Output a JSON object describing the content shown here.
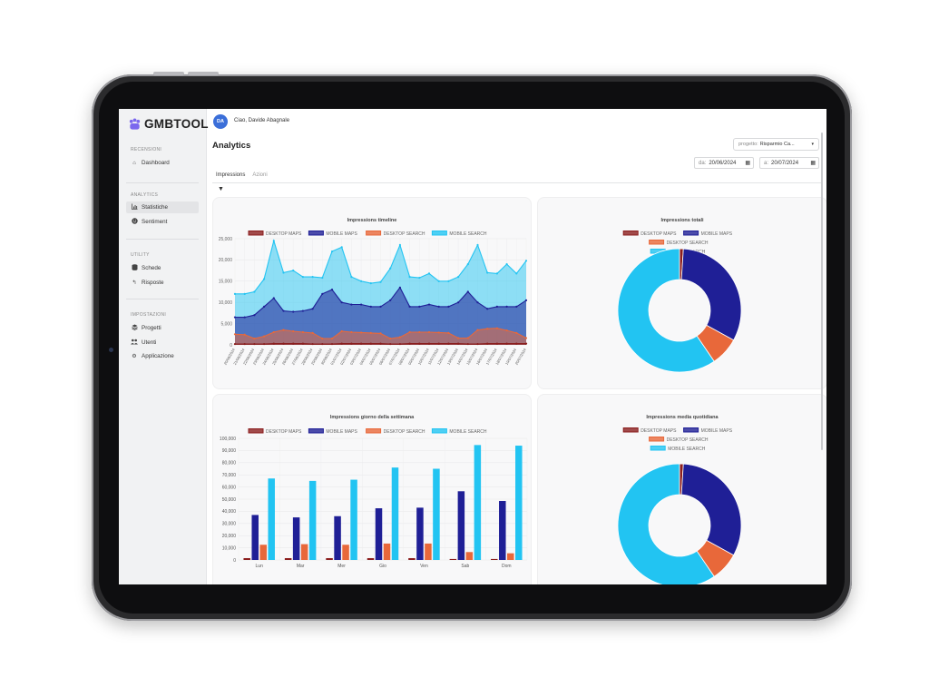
{
  "app": {
    "brand": "GMBTOOL"
  },
  "sidebar": {
    "sections": [
      {
        "title": "RECENSIONI",
        "items": [
          {
            "label": "Dashboard",
            "icon": "home-icon"
          }
        ]
      },
      {
        "title": "ANALYTICS",
        "items": [
          {
            "label": "Statistiche",
            "icon": "chart-icon",
            "active": true
          },
          {
            "label": "Sentiment",
            "icon": "smile-icon"
          }
        ]
      },
      {
        "title": "UTILITY",
        "items": [
          {
            "label": "Schede",
            "icon": "database-icon"
          },
          {
            "label": "Risposte",
            "icon": "reply-icon"
          }
        ]
      },
      {
        "title": "IMPOSTAZIONI",
        "items": [
          {
            "label": "Progetti",
            "icon": "layers-icon"
          },
          {
            "label": "Utenti",
            "icon": "users-icon"
          },
          {
            "label": "Applicazione",
            "icon": "gear-icon"
          }
        ]
      }
    ]
  },
  "header": {
    "avatar_initials": "DA",
    "greeting": "Ciao, Davide Abagnale"
  },
  "page": {
    "title": "Analytics"
  },
  "filters": {
    "project_label": "progetto:",
    "project_value": "Risparmio Ca...",
    "from_label": "da:",
    "from_value": "20/06/2024",
    "to_label": "a:",
    "to_value": "20/07/2024",
    "filter_toggle": "▼"
  },
  "tabs": [
    {
      "label": "Impressions",
      "active": true
    },
    {
      "label": "Azioni",
      "active": false
    }
  ],
  "colors": {
    "desktop_maps": "#8b1e1e",
    "mobile_maps": "#1f1f96",
    "desktop_search": "#e8683a",
    "mobile_search": "#22c4f2"
  },
  "chart_data": [
    {
      "type": "area",
      "title": "Impressions timeline",
      "x": [
        "20/06/2024",
        "21/06/2024",
        "22/06/2024",
        "23/06/2024",
        "24/06/2024",
        "25/06/2024",
        "26/06/2024",
        "27/06/2024",
        "28/06/2024",
        "29/06/2024",
        "30/06/2024",
        "01/07/2024",
        "02/07/2024",
        "03/07/2024",
        "04/07/2024",
        "05/07/2024",
        "06/07/2024",
        "07/07/2024",
        "08/07/2024",
        "09/07/2024",
        "10/07/2024",
        "11/07/2024",
        "12/07/2024",
        "13/07/2024",
        "14/07/2024",
        "15/07/2024",
        "16/07/2024",
        "17/07/2024",
        "18/07/2024",
        "19/07/2024",
        "20/07/2024"
      ],
      "yticks": [
        "0",
        "5,000",
        "10,000",
        "15,000",
        "20,000",
        "25,000"
      ],
      "ylim": [
        0,
        25000
      ],
      "series": [
        {
          "name": "DESKTOP MAPS",
          "values": [
            200,
            200,
            200,
            200,
            300,
            300,
            300,
            300,
            200,
            200,
            200,
            300,
            300,
            300,
            300,
            300,
            200,
            200,
            300,
            300,
            300,
            300,
            300,
            300,
            200,
            200,
            300,
            300,
            300,
            300,
            300
          ]
        },
        {
          "name": "MOBILE MAPS",
          "values": [
            6500,
            6500,
            7000,
            9000,
            11000,
            8000,
            7800,
            8000,
            8500,
            12000,
            13000,
            10000,
            9500,
            9500,
            9000,
            9000,
            10500,
            13500,
            9000,
            9000,
            9500,
            9000,
            9000,
            10000,
            12500,
            10000,
            8500,
            9000,
            9000,
            9000,
            10500
          ]
        },
        {
          "name": "DESKTOP SEARCH",
          "values": [
            2500,
            2400,
            1500,
            2000,
            3000,
            3500,
            3200,
            3000,
            2800,
            1500,
            1500,
            3200,
            3000,
            2900,
            2800,
            2700,
            1500,
            1800,
            3000,
            3000,
            3000,
            2900,
            2800,
            1600,
            1600,
            3500,
            3800,
            3900,
            3400,
            2800,
            1600
          ]
        },
        {
          "name": "MOBILE SEARCH",
          "values": [
            12000,
            12000,
            12500,
            15500,
            24500,
            17000,
            17500,
            16000,
            16000,
            15800,
            22000,
            23000,
            16000,
            15000,
            14500,
            14800,
            18000,
            23500,
            16000,
            15800,
            16800,
            15000,
            15000,
            16000,
            19000,
            23500,
            17000,
            16800,
            19000,
            16800,
            19800
          ]
        }
      ]
    },
    {
      "type": "pie",
      "title": "Impressions totali",
      "donut": true,
      "labels": [
        "DESKTOP MAPS",
        "MOBILE MAPS",
        "DESKTOP SEARCH",
        "MOBILE SEARCH"
      ],
      "values": [
        1.0,
        32.0,
        7.5,
        59.5
      ]
    },
    {
      "type": "bar",
      "title": "Impressions giorno della settimana",
      "categories": [
        "Lun",
        "Mar",
        "Mer",
        "Gio",
        "Ven",
        "Sab",
        "Dom"
      ],
      "yticks": [
        "0",
        "10,000",
        "20,000",
        "30,000",
        "40,000",
        "50,000",
        "60,000",
        "70,000",
        "80,000",
        "90,000",
        "100,000"
      ],
      "ylim": [
        0,
        100000
      ],
      "series": [
        {
          "name": "DESKTOP MAPS",
          "values": [
            1500,
            1500,
            1500,
            1500,
            1500,
            800,
            800
          ]
        },
        {
          "name": "MOBILE MAPS",
          "values": [
            37000,
            35000,
            36000,
            42500,
            43000,
            56500,
            48500
          ]
        },
        {
          "name": "DESKTOP SEARCH",
          "values": [
            12500,
            13000,
            12500,
            13500,
            13500,
            6500,
            5500
          ]
        },
        {
          "name": "MOBILE SEARCH",
          "values": [
            67000,
            65000,
            66000,
            76000,
            75000,
            94500,
            94000
          ]
        }
      ]
    },
    {
      "type": "pie",
      "title": "Impressions media quotidiana",
      "donut": true,
      "labels": [
        "DESKTOP MAPS",
        "MOBILE MAPS",
        "DESKTOP SEARCH",
        "MOBILE SEARCH"
      ],
      "values": [
        1.0,
        32.0,
        7.5,
        59.5
      ]
    }
  ]
}
